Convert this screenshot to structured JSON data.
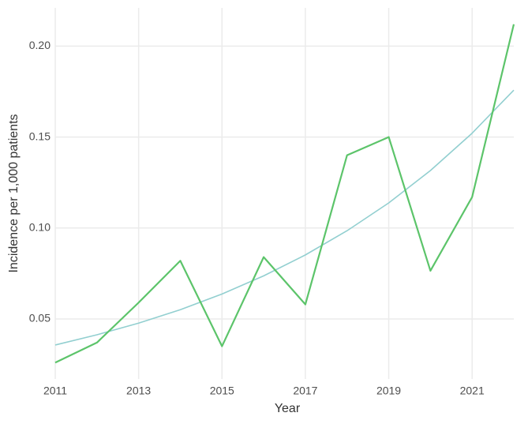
{
  "chart_data": {
    "type": "line",
    "x_label": "Year",
    "y_label": "Incidence per 1,000 patients",
    "x": [
      2011,
      2012,
      2013,
      2014,
      2015,
      2016,
      2017,
      2018,
      2019,
      2020,
      2021,
      2022
    ],
    "series": [
      {
        "color": "#5cc46a",
        "values": [
          0.026,
          0.037,
          0.059,
          0.082,
          0.035,
          0.084,
          0.058,
          0.14,
          0.15,
          0.0765,
          0.117,
          0.212
        ]
      },
      {
        "color": "#92cfd0",
        "values": [
          0.0357,
          0.0413,
          0.0477,
          0.0551,
          0.0637,
          0.0737,
          0.0852,
          0.0985,
          0.1138,
          0.1316,
          0.1521,
          0.1758
        ]
      }
    ],
    "xlim": [
      2011,
      2022
    ],
    "xticks": [
      2011,
      2013,
      2015,
      2017,
      2019,
      2021
    ],
    "ylim": [
      0.017,
      0.221
    ],
    "yticks": [
      0.05,
      {
        "value": 0.1,
        "label": "0.10"
      },
      0.15,
      {
        "value": 0.2,
        "label": "0.20"
      }
    ],
    "grid": true
  }
}
